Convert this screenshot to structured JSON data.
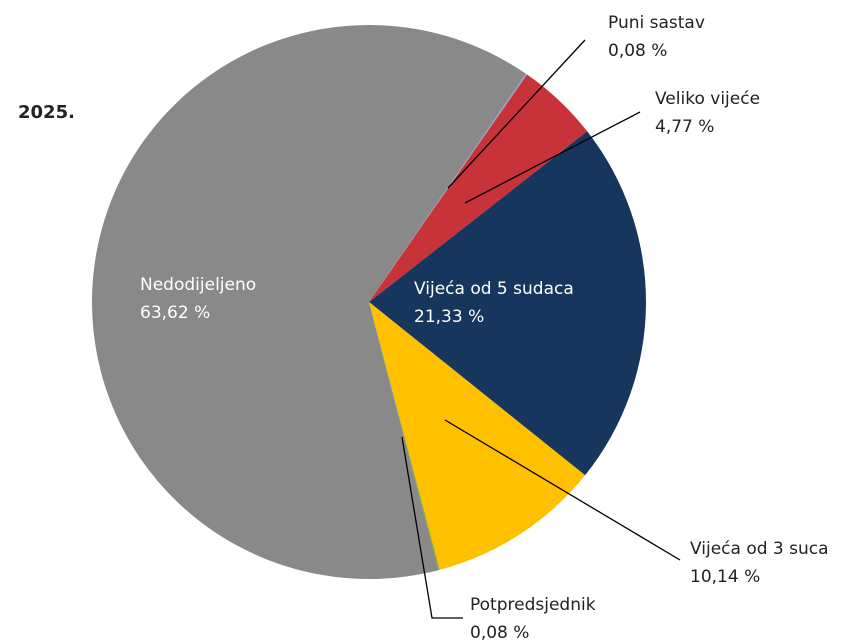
{
  "chart_data": {
    "type": "pie",
    "title": "2025.",
    "labels": [
      "Puni sastav",
      "Veliko vijeće",
      "Vijeća od 5 sudaca",
      "Vijeća od 3 suca",
      "Potpredsjednik",
      "Nedodijeljeno"
    ],
    "values": [
      0.08,
      4.77,
      21.33,
      10.14,
      0.08,
      63.62
    ],
    "value_labels": [
      "0,08 %",
      "4,77 %",
      "21,33 %",
      "10,14 %",
      "0,08 %",
      "63,62 %"
    ],
    "colors": [
      "#8ea9d4",
      "#c8333a",
      "#17365d",
      "#ffc000",
      "#70ad47",
      "#898989"
    ]
  }
}
